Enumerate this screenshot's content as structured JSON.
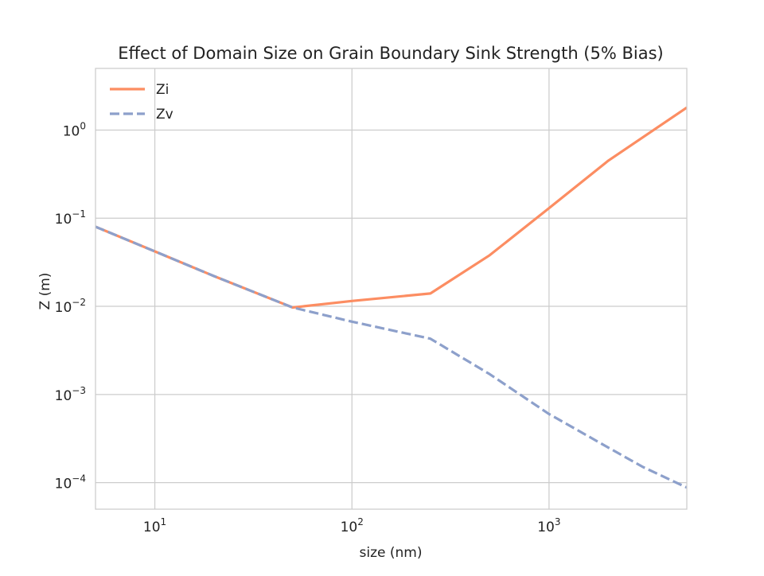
{
  "chart_data": {
    "type": "line",
    "title": "Effect of Domain Size on Grain Boundary Sink Strength (5% Bias)",
    "xlabel": "size (nm)",
    "ylabel": "Z (m)",
    "xscale": "log",
    "yscale": "log",
    "xlim": [
      5,
      5000
    ],
    "ylim": [
      5e-05,
      5
    ],
    "grid": true,
    "legend_position": "top-left",
    "x_ticks": [
      {
        "value": 10,
        "base": "10",
        "exp": "1"
      },
      {
        "value": 100,
        "base": "10",
        "exp": "2"
      },
      {
        "value": 1000,
        "base": "10",
        "exp": "3"
      }
    ],
    "y_ticks": [
      {
        "value": 0.0001,
        "base": "10",
        "exp": "−4"
      },
      {
        "value": 0.001,
        "base": "10",
        "exp": "−3"
      },
      {
        "value": 0.01,
        "base": "10",
        "exp": "−2"
      },
      {
        "value": 0.1,
        "base": "10",
        "exp": "−1"
      },
      {
        "value": 1,
        "base": "10",
        "exp": "0"
      }
    ],
    "series": [
      {
        "name": "Zi",
        "color": "#fc8d62",
        "style": "solid",
        "x": [
          5,
          10,
          20,
          50,
          100,
          250,
          500,
          1000,
          2000,
          5000
        ],
        "y": [
          0.08,
          0.042,
          0.022,
          0.0097,
          0.0115,
          0.014,
          0.038,
          0.13,
          0.45,
          1.8
        ]
      },
      {
        "name": "Zv",
        "color": "#8da0cb",
        "style": "dashed",
        "x": [
          5,
          10,
          20,
          50,
          100,
          250,
          500,
          1000,
          2000,
          3000,
          5000
        ],
        "y": [
          0.08,
          0.042,
          0.022,
          0.0097,
          0.0067,
          0.0043,
          0.0017,
          0.0006,
          0.00025,
          0.00015,
          8.8e-05
        ]
      }
    ]
  }
}
